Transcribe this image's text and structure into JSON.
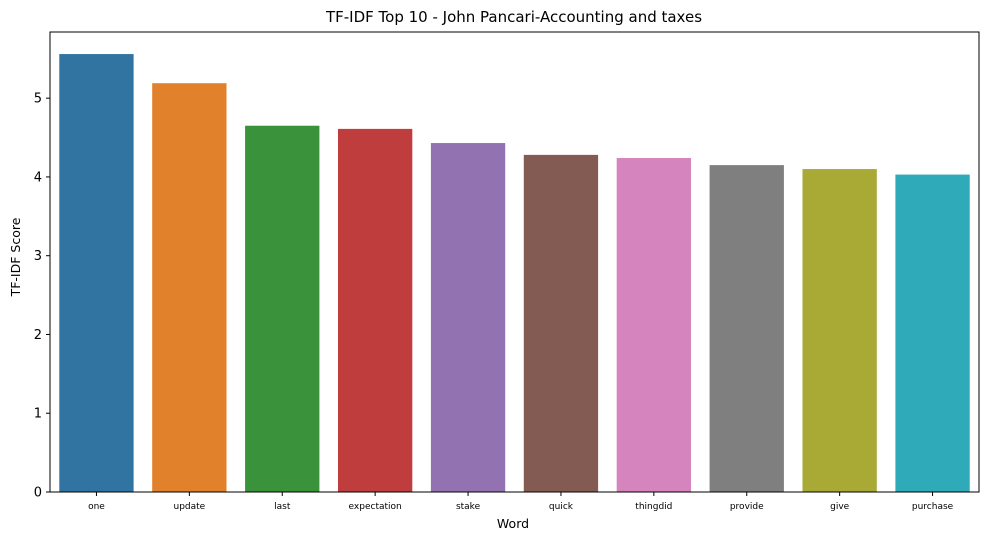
{
  "chart_data": {
    "type": "bar",
    "title": "TF-IDF Top 10 - John Pancari-Accounting and taxes",
    "xlabel": "Word",
    "ylabel": "TF-IDF Score",
    "categories": [
      "one",
      "update",
      "last",
      "expectation",
      "stake",
      "quick",
      "thingdid",
      "provide",
      "give",
      "purchase"
    ],
    "values": [
      5.56,
      5.19,
      4.65,
      4.61,
      4.43,
      4.28,
      4.24,
      4.15,
      4.1,
      4.03
    ],
    "colors": [
      "#3274a1",
      "#e1812c",
      "#3a923a",
      "#c03d3e",
      "#9372b2",
      "#845b53",
      "#d684bd",
      "#7f7f7f",
      "#a9aa35",
      "#2eaab8"
    ],
    "ylim": [
      0,
      5.84
    ],
    "yticks": [
      0,
      1,
      2,
      3,
      4,
      5
    ],
    "grid": false,
    "legend": "none"
  }
}
